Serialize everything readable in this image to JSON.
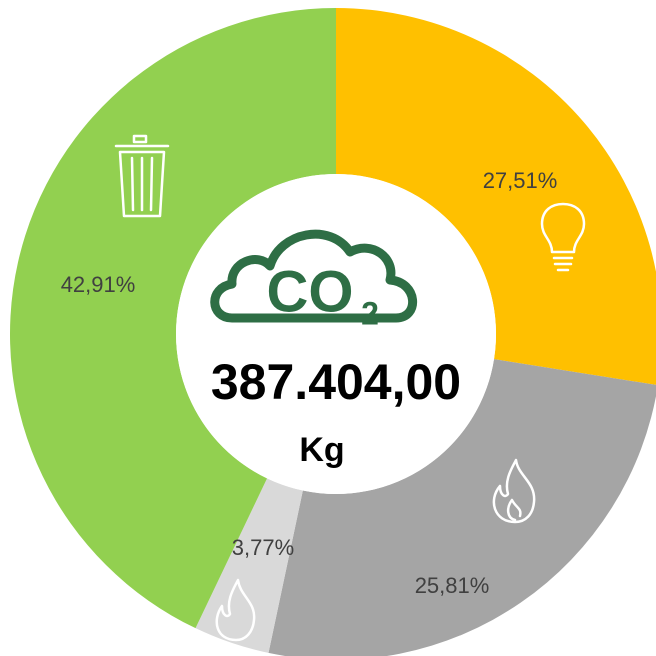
{
  "chart_data": {
    "type": "donut",
    "categories": [
      "Electricity",
      "Gas",
      "Other gas",
      "Waste"
    ],
    "values": [
      27.51,
      25.81,
      3.77,
      42.91
    ],
    "value_labels": [
      "27,51%",
      "25,81%",
      "3,77%",
      "42,91%"
    ],
    "colors": [
      "#FFC000",
      "#A5A5A5",
      "#D9D9D9",
      "#92D050"
    ],
    "center_icon_text": "CO",
    "center_icon_subscript": "2",
    "center_value": "387.404,00",
    "center_unit": "Kg"
  }
}
